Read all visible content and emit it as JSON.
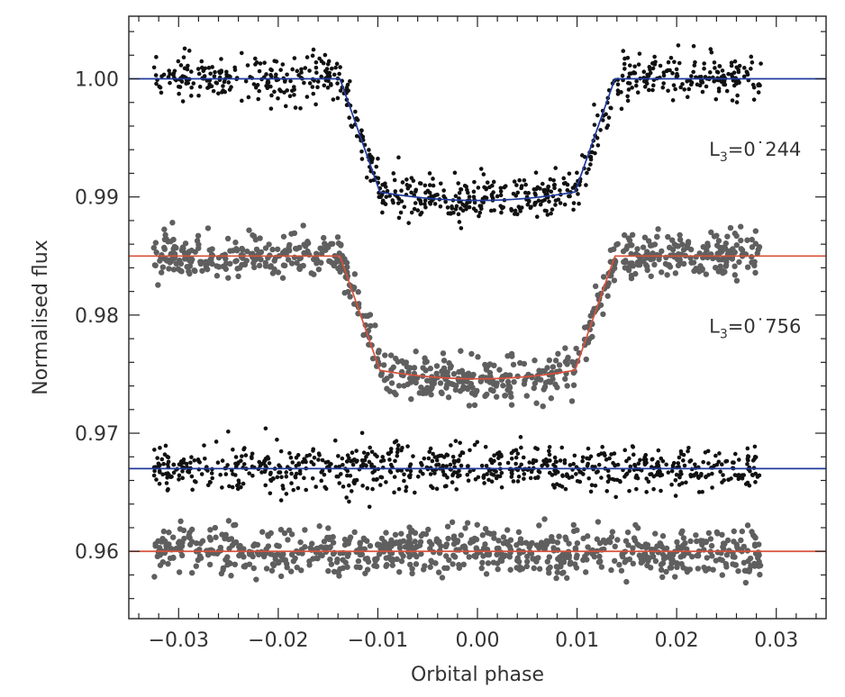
{
  "chart_data": {
    "type": "scatter",
    "xlabel": "Orbital phase",
    "ylabel": "Normalised flux",
    "xlim": [
      -0.035,
      0.035
    ],
    "ylim": [
      0.9543,
      1.0053
    ],
    "x_ticks": [
      -0.03,
      -0.02,
      -0.01,
      0.0,
      0.01,
      0.02,
      0.03
    ],
    "x_tick_labels": [
      "−0.03",
      "−0.02",
      "−0.01",
      "0.00",
      "0.01",
      "0.02",
      "0.03"
    ],
    "y_ticks": [
      0.96,
      0.97,
      0.98,
      0.99,
      1.0
    ],
    "y_tick_labels": [
      "0.96",
      "0.97",
      "0.98",
      "0.99",
      "1.00"
    ],
    "grid": false,
    "annotations": [
      {
        "label": "L",
        "sub": "3",
        "value": "=0˙244",
        "x": 0.0325,
        "y": 0.9935
      },
      {
        "label": "L",
        "sub": "3",
        "value": "=0˙756",
        "x": 0.0325,
        "y": 0.9785
      }
    ],
    "series": [
      {
        "kind": "transit",
        "baseline": 1.0,
        "depth": 0.0103,
        "t1": 0.0138,
        "t2": 0.0098,
        "scatter": 0.00095,
        "marker_color": "#111111",
        "line_color": "#1f3a9e",
        "marker_size": 2.3
      },
      {
        "kind": "transit",
        "baseline": 0.985,
        "depth": 0.0104,
        "t1": 0.0138,
        "t2": 0.0098,
        "scatter": 0.00095,
        "marker_color": "#5f5f5f",
        "line_color": "#d9503a",
        "marker_size": 3.2
      },
      {
        "kind": "residual",
        "baseline": 0.967,
        "scatter": 0.00095,
        "marker_color": "#111111",
        "line_color": "#1f3a9e",
        "marker_size": 2.3
      },
      {
        "kind": "residual",
        "baseline": 0.96,
        "scatter": 0.00095,
        "marker_color": "#5f5f5f",
        "line_color": "#d9503a",
        "marker_size": 3.2
      }
    ],
    "x_range_points": [
      -0.0325,
      0.0285
    ]
  }
}
